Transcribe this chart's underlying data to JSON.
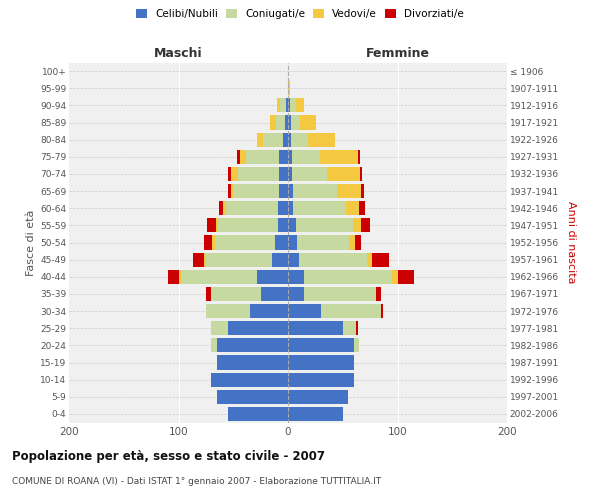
{
  "age_groups": [
    "0-4",
    "5-9",
    "10-14",
    "15-19",
    "20-24",
    "25-29",
    "30-34",
    "35-39",
    "40-44",
    "45-49",
    "50-54",
    "55-59",
    "60-64",
    "65-69",
    "70-74",
    "75-79",
    "80-84",
    "85-89",
    "90-94",
    "95-99",
    "100+"
  ],
  "birth_years": [
    "2002-2006",
    "1997-2001",
    "1992-1996",
    "1987-1991",
    "1982-1986",
    "1977-1981",
    "1972-1976",
    "1967-1971",
    "1962-1966",
    "1957-1961",
    "1952-1956",
    "1947-1951",
    "1942-1946",
    "1937-1941",
    "1932-1936",
    "1927-1931",
    "1922-1926",
    "1917-1921",
    "1912-1916",
    "1907-1911",
    "≤ 1906"
  ],
  "colors": {
    "celibi": "#4472c4",
    "coniugati": "#c5d9a0",
    "vedovi": "#f5c842",
    "divorziati": "#cc0000"
  },
  "maschi": {
    "celibi": [
      55,
      65,
      70,
      65,
      65,
      55,
      35,
      25,
      28,
      15,
      12,
      9,
      9,
      8,
      8,
      8,
      5,
      3,
      2,
      0,
      0
    ],
    "coniugati": [
      0,
      0,
      0,
      0,
      5,
      15,
      40,
      45,
      70,
      60,
      55,
      55,
      48,
      42,
      38,
      30,
      18,
      8,
      5,
      0,
      0
    ],
    "vedovi": [
      0,
      0,
      0,
      0,
      0,
      0,
      0,
      0,
      2,
      2,
      2,
      2,
      2,
      2,
      6,
      6,
      5,
      5,
      3,
      0,
      0
    ],
    "divorziati": [
      0,
      0,
      0,
      0,
      0,
      0,
      0,
      5,
      10,
      10,
      8,
      8,
      4,
      3,
      3,
      3,
      0,
      0,
      0,
      0,
      0
    ]
  },
  "femmine": {
    "celibi": [
      50,
      55,
      60,
      60,
      60,
      50,
      30,
      15,
      15,
      10,
      8,
      7,
      5,
      5,
      4,
      4,
      3,
      3,
      2,
      0,
      0
    ],
    "coniugati": [
      0,
      0,
      0,
      0,
      5,
      12,
      55,
      65,
      80,
      62,
      48,
      52,
      48,
      40,
      32,
      25,
      15,
      8,
      5,
      0,
      0
    ],
    "vedovi": [
      0,
      0,
      0,
      0,
      0,
      0,
      0,
      0,
      5,
      5,
      5,
      8,
      12,
      22,
      30,
      35,
      25,
      15,
      8,
      2,
      0
    ],
    "divorziati": [
      0,
      0,
      0,
      0,
      0,
      2,
      2,
      5,
      15,
      15,
      6,
      8,
      5,
      2,
      2,
      2,
      0,
      0,
      0,
      0,
      0
    ]
  },
  "xlim": 200,
  "title": "Popolazione per età, sesso e stato civile - 2007",
  "subtitle": "COMUNE DI ROANA (VI) - Dati ISTAT 1° gennaio 2007 - Elaborazione TUTTITALIA.IT",
  "xlabel_left": "Maschi",
  "xlabel_right": "Femmine",
  "ylabel": "Fasce di età",
  "ylabel_right": "Anni di nascita",
  "legend_labels": [
    "Celibi/Nubili",
    "Coniugati/e",
    "Vedovi/e",
    "Divorziati/e"
  ],
  "bg_color": "#ffffff",
  "plot_bg_color": "#f0f0f0"
}
